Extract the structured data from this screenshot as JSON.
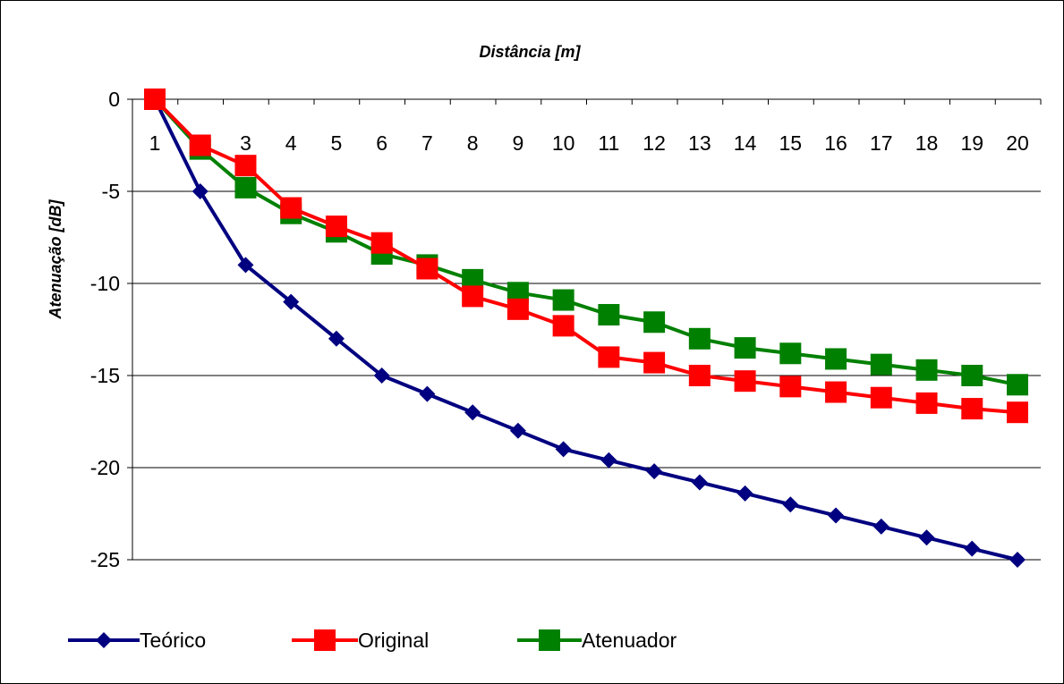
{
  "chart_data": {
    "type": "line",
    "title": "",
    "xlabel": "Distância [m]",
    "ylabel": "Atenuação [dB]",
    "x_categories": [
      "1",
      "2",
      "3",
      "4",
      "5",
      "6",
      "7",
      "8",
      "9",
      "10",
      "11",
      "12",
      "13",
      "14",
      "15",
      "16",
      "17",
      "18",
      "19",
      "20"
    ],
    "y_ticks": [
      "0",
      "-5",
      "-10",
      "-15",
      "-20",
      "-25"
    ],
    "ylim": [
      -25,
      0
    ],
    "x_axis_position": "top",
    "grid": "horizontal",
    "legend_position": "bottom",
    "series": [
      {
        "name": "Teórico",
        "color": "#000080",
        "marker": "diamond",
        "values": [
          0,
          -5,
          -9,
          -11,
          -13,
          -15,
          -16,
          -17,
          -18,
          -19,
          -19.6,
          -20.2,
          -20.8,
          -21.4,
          -22,
          -22.6,
          -23.2,
          -23.8,
          -24.4,
          -25
        ]
      },
      {
        "name": "Original",
        "color": "#ff0000",
        "marker": "square",
        "values": [
          0,
          -2.5,
          -3.6,
          -5.9,
          -6.9,
          -7.8,
          -9.2,
          -10.7,
          -11.4,
          -12.3,
          -14,
          -14.3,
          -15,
          -15.3,
          -15.6,
          -15.9,
          -16.2,
          -16.5,
          -16.8,
          -17
        ]
      },
      {
        "name": "Atenuador",
        "color": "#008000",
        "marker": "square",
        "values": [
          0,
          -2.7,
          -4.8,
          -6.2,
          -7.2,
          -8.4,
          -9,
          -9.8,
          -10.5,
          -10.9,
          -11.7,
          -12.1,
          -13,
          -13.5,
          -13.8,
          -14.1,
          -14.4,
          -14.7,
          -15,
          -15.5
        ]
      }
    ]
  }
}
